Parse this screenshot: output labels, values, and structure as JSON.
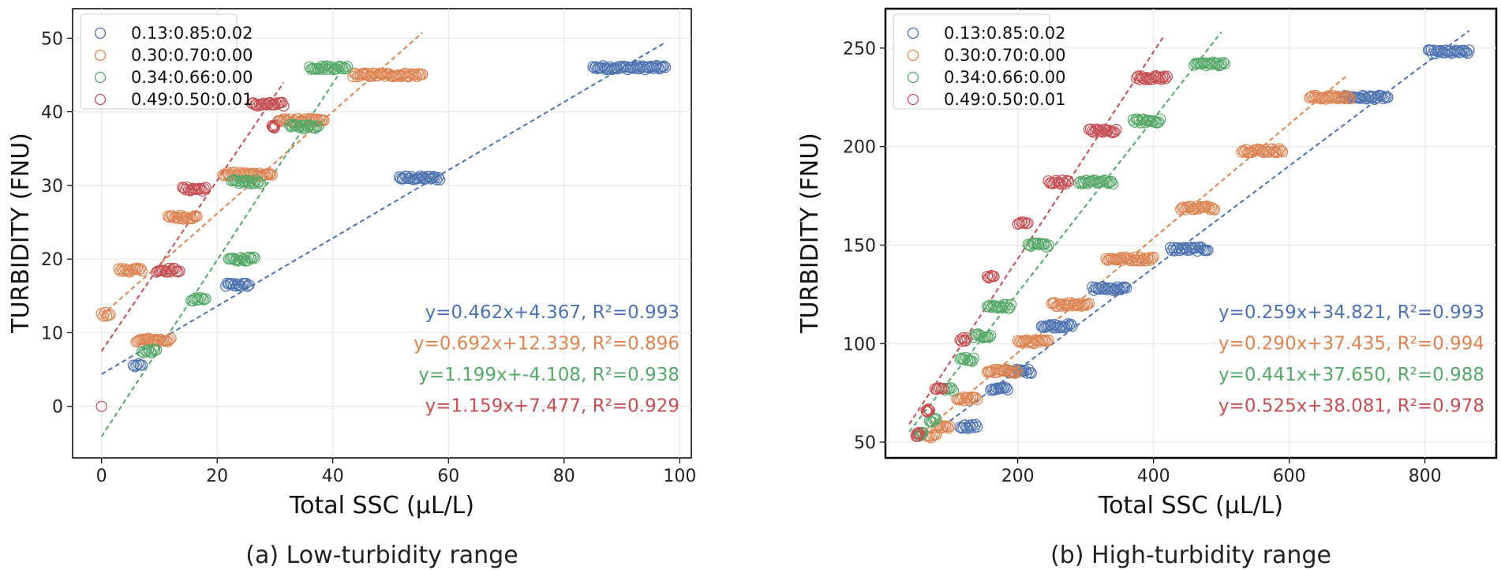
{
  "chart_data": [
    {
      "type": "scatter",
      "caption": "(a) Low-turbidity range",
      "xlabel": "Total SSC (μL/L)",
      "ylabel": "TURBIDITY (FNU)",
      "xlim": [
        -5,
        102
      ],
      "ylim": [
        -7,
        54
      ],
      "xticks": [
        0,
        20,
        40,
        60,
        80,
        100
      ],
      "yticks": [
        0,
        10,
        20,
        30,
        40,
        50
      ],
      "grid": true,
      "legend_position": "top-left",
      "series": [
        {
          "name": "0.13:0.85:0.02",
          "color": "#4c72b0",
          "fit": {
            "slope": 0.462,
            "intercept": 4.367,
            "x_range": [
              0,
              97.5
            ]
          },
          "equation": "y=0.462x+4.367, R²=0.993",
          "clusters": [
            [
              5.5,
              7,
              5.5
            ],
            [
              21.5,
              25.5,
              16.5
            ],
            [
              51.5,
              58.5,
              31
            ],
            [
              85,
              97.5,
              46
            ]
          ]
        },
        {
          "name": "0.30:0.70:0.00",
          "color": "#dd8452",
          "fit": {
            "slope": 0.692,
            "intercept": 12.339,
            "x_range": [
              0,
              55.5
            ]
          },
          "equation": "y=0.692x+12.339, R²=0.896",
          "clusters": [
            [
              0,
              1.5,
              12.5
            ],
            [
              3,
              7,
              18.5
            ],
            [
              6,
              12,
              9
            ],
            [
              11.5,
              16.5,
              25.7
            ],
            [
              21,
              29.5,
              31.5
            ],
            [
              30.5,
              38.5,
              38.8
            ],
            [
              43.5,
              55.5,
              45
            ]
          ]
        },
        {
          "name": "0.34:0.66:0.00",
          "color": "#55a868",
          "fit": {
            "slope": 1.199,
            "intercept": -4.108,
            "x_range": [
              0,
              41.5
            ]
          },
          "equation": "y=1.199x+-4.108, R²=0.938",
          "clusters": [
            [
              7,
              9.5,
              7.5
            ],
            [
              15.5,
              18,
              14.5
            ],
            [
              22,
              26.5,
              20
            ],
            [
              22.5,
              27.5,
              30.5
            ],
            [
              32.5,
              37.5,
              38
            ],
            [
              36,
              42.5,
              46
            ]
          ]
        },
        {
          "name": "0.49:0.50:0.01",
          "color": "#c44e52",
          "fit": {
            "slope": 1.159,
            "intercept": 7.477,
            "x_range": [
              0,
              31.5
            ]
          },
          "equation": "y=1.159x+7.477, R²=0.929",
          "clusters": [
            [
              0,
              0,
              0
            ],
            [
              9.5,
              13.5,
              18.5
            ],
            [
              14,
              18,
              29.5
            ],
            [
              26,
              31.5,
              41
            ],
            [
              29.5,
              30,
              38
            ]
          ]
        }
      ]
    },
    {
      "type": "scatter",
      "caption": "(b) High-turbidity range",
      "xlabel": "Total SSC (μL/L)",
      "ylabel": "TURBIDITY (FNU)",
      "xlim": [
        5,
        905
      ],
      "ylim": [
        42,
        270
      ],
      "xticks": [
        200,
        400,
        600,
        800
      ],
      "yticks": [
        50,
        100,
        150,
        200,
        250
      ],
      "grid": true,
      "legend_position": "top-left",
      "series": [
        {
          "name": "0.13:0.85:0.02",
          "color": "#4c72b0",
          "fit": {
            "slope": 0.259,
            "intercept": 34.821,
            "x_range": [
              100,
              865
            ]
          },
          "equation": "y=0.259x+34.821, R²=0.993",
          "clusters": [
            [
              115,
              140,
              58
            ],
            [
              160,
              185,
              77
            ],
            [
              185,
              220,
              86
            ],
            [
              235,
              280,
              109
            ],
            [
              310,
              360,
              128
            ],
            [
              425,
              480,
              148
            ],
            [
              680,
              745,
              225
            ],
            [
              805,
              865,
              248
            ]
          ]
        },
        {
          "name": "0.30:0.70:0.00",
          "color": "#dd8452",
          "fit": {
            "slope": 0.29,
            "intercept": 37.435,
            "x_range": [
              55,
              685
            ]
          },
          "equation": "y=0.290x+37.435, R²=0.994",
          "clusters": [
            [
              65,
              80,
              53
            ],
            [
              80,
              100,
              58
            ],
            [
              110,
              140,
              72
            ],
            [
              155,
              200,
              86
            ],
            [
              200,
              245,
              101
            ],
            [
              250,
              305,
              120
            ],
            [
              330,
              400,
              143
            ],
            [
              440,
              490,
              169
            ],
            [
              530,
              590,
              198
            ],
            [
              630,
              690,
              225
            ]
          ]
        },
        {
          "name": "0.34:0.66:0.00",
          "color": "#55a868",
          "fit": {
            "slope": 0.441,
            "intercept": 37.65,
            "x_range": [
              40,
              500
            ]
          },
          "equation": "y=0.441x+37.650, R²=0.988",
          "clusters": [
            [
              55,
              60,
              54
            ],
            [
              70,
              80,
              61
            ],
            [
              90,
              105,
              77
            ],
            [
              115,
              135,
              92
            ],
            [
              135,
              160,
              104
            ],
            [
              155,
              190,
              119
            ],
            [
              215,
              245,
              150
            ],
            [
              290,
              340,
              182
            ],
            [
              370,
              410,
              213
            ],
            [
              460,
              505,
              242
            ]
          ]
        },
        {
          "name": "0.49:0.50:0.01",
          "color": "#c44e52",
          "fit": {
            "slope": 0.525,
            "intercept": 38.081,
            "x_range": [
              40,
              415
            ]
          },
          "equation": "y=0.525x+38.081, R²=0.978",
          "clusters": [
            [
              50,
              55,
              54
            ],
            [
              65,
              70,
              66
            ],
            [
              78,
              90,
              77
            ],
            [
              115,
              125,
              102
            ],
            [
              155,
              165,
              134
            ],
            [
              200,
              215,
              161
            ],
            [
              245,
              275,
              182
            ],
            [
              305,
              345,
              208
            ],
            [
              375,
              420,
              235
            ]
          ]
        }
      ]
    }
  ]
}
